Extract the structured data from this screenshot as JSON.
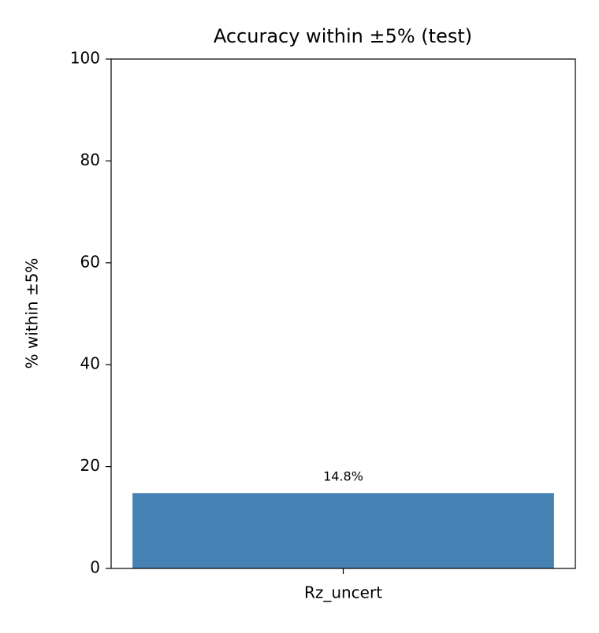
{
  "chart_data": {
    "type": "bar",
    "title": "Accuracy within ±5% (test)",
    "ylabel": "% within ±5%",
    "categories": [
      "Rz_uncert"
    ],
    "values": [
      14.8
    ],
    "value_labels": [
      "14.8%"
    ],
    "color": "#4682b4",
    "ylim": [
      0,
      100
    ],
    "yticks": [
      0,
      20,
      40,
      60,
      80,
      100
    ],
    "grid": false
  }
}
